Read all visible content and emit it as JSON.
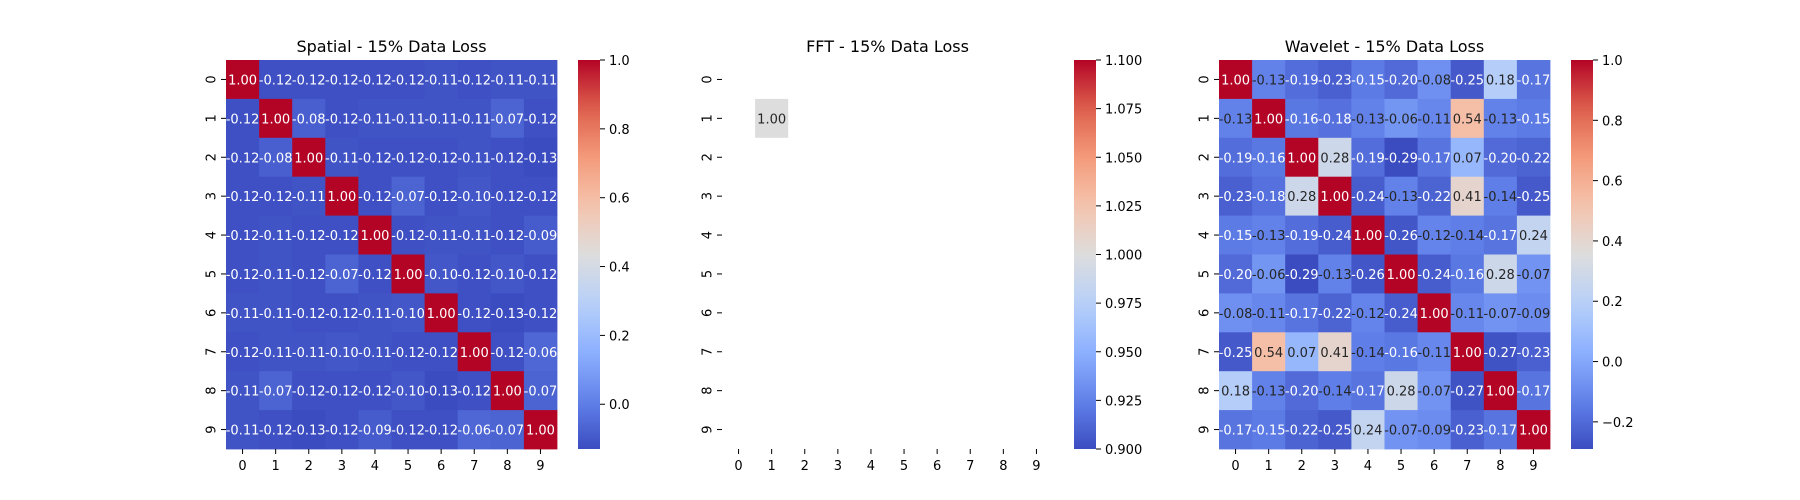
{
  "chart_data": [
    {
      "type": "heatmap",
      "title": "Spatial - 15% Data Loss",
      "x_ticks": [
        "0",
        "1",
        "2",
        "3",
        "4",
        "5",
        "6",
        "7",
        "8",
        "9"
      ],
      "y_ticks": [
        "0",
        "1",
        "2",
        "3",
        "4",
        "5",
        "6",
        "7",
        "8",
        "9"
      ],
      "matrix": [
        [
          1.0,
          -0.12,
          -0.12,
          -0.12,
          -0.12,
          -0.12,
          -0.11,
          -0.12,
          -0.11,
          -0.11
        ],
        [
          -0.12,
          1.0,
          -0.08,
          -0.12,
          -0.11,
          -0.11,
          -0.11,
          -0.11,
          -0.07,
          -0.12
        ],
        [
          -0.12,
          -0.08,
          1.0,
          -0.11,
          -0.12,
          -0.12,
          -0.12,
          -0.11,
          -0.12,
          -0.13
        ],
        [
          -0.12,
          -0.12,
          -0.11,
          1.0,
          -0.12,
          -0.07,
          -0.12,
          -0.1,
          -0.12,
          -0.12
        ],
        [
          -0.12,
          -0.11,
          -0.12,
          -0.12,
          1.0,
          -0.12,
          -0.11,
          -0.11,
          -0.12,
          -0.09
        ],
        [
          -0.12,
          -0.11,
          -0.12,
          -0.07,
          -0.12,
          1.0,
          -0.1,
          -0.12,
          -0.1,
          -0.12
        ],
        [
          -0.11,
          -0.11,
          -0.12,
          -0.12,
          -0.11,
          -0.1,
          1.0,
          -0.12,
          -0.13,
          -0.12
        ],
        [
          -0.12,
          -0.11,
          -0.11,
          -0.1,
          -0.11,
          -0.12,
          -0.12,
          1.0,
          -0.12,
          -0.06
        ],
        [
          -0.11,
          -0.07,
          -0.12,
          -0.12,
          -0.12,
          -0.1,
          -0.13,
          -0.12,
          1.0,
          -0.07
        ],
        [
          -0.11,
          -0.12,
          -0.13,
          -0.12,
          -0.09,
          -0.12,
          -0.12,
          -0.06,
          -0.07,
          1.0
        ]
      ],
      "colorbar": {
        "min": -0.13,
        "max": 1.0,
        "ticks": [
          "0.0",
          "0.2",
          "0.4",
          "0.6",
          "0.8",
          "1.0"
        ],
        "tick_values": [
          0.0,
          0.2,
          0.4,
          0.6,
          0.8,
          1.0
        ]
      },
      "colormap": "coolwarm"
    },
    {
      "type": "heatmap",
      "title": "FFT - 15% Data Loss",
      "x_ticks": [
        "0",
        "1",
        "2",
        "3",
        "4",
        "5",
        "6",
        "7",
        "8",
        "9"
      ],
      "y_ticks": [
        "0",
        "1",
        "2",
        "3",
        "4",
        "5",
        "6",
        "7",
        "8",
        "9"
      ],
      "cells": [
        {
          "row": 1,
          "col": 1,
          "value": 1.0,
          "label": "1.00"
        }
      ],
      "colorbar": {
        "min": 0.9,
        "max": 1.1,
        "ticks": [
          "0.900",
          "0.925",
          "0.950",
          "0.975",
          "1.000",
          "1.025",
          "1.050",
          "1.075",
          "1.100"
        ],
        "tick_values": [
          0.9,
          0.925,
          0.95,
          0.975,
          1.0,
          1.025,
          1.05,
          1.075,
          1.1
        ]
      },
      "colormap": "coolwarm"
    },
    {
      "type": "heatmap",
      "title": "Wavelet - 15% Data Loss",
      "x_ticks": [
        "0",
        "1",
        "2",
        "3",
        "4",
        "5",
        "6",
        "7",
        "8",
        "9"
      ],
      "y_ticks": [
        "0",
        "1",
        "2",
        "3",
        "4",
        "5",
        "6",
        "7",
        "8",
        "9"
      ],
      "matrix": [
        [
          1.0,
          -0.13,
          -0.19,
          -0.23,
          -0.15,
          -0.2,
          -0.08,
          -0.25,
          0.18,
          -0.17
        ],
        [
          -0.13,
          1.0,
          -0.16,
          -0.18,
          -0.13,
          -0.06,
          -0.11,
          0.54,
          -0.13,
          -0.15
        ],
        [
          -0.19,
          -0.16,
          1.0,
          0.28,
          -0.19,
          -0.29,
          -0.17,
          0.07,
          -0.2,
          -0.22
        ],
        [
          -0.23,
          -0.18,
          0.28,
          1.0,
          -0.24,
          -0.13,
          -0.22,
          0.41,
          -0.14,
          -0.25
        ],
        [
          -0.15,
          -0.13,
          -0.19,
          -0.24,
          1.0,
          -0.26,
          -0.12,
          -0.14,
          -0.17,
          0.24
        ],
        [
          -0.2,
          -0.06,
          -0.29,
          -0.13,
          -0.26,
          1.0,
          -0.24,
          -0.16,
          0.28,
          -0.07
        ],
        [
          -0.08,
          -0.11,
          -0.17,
          -0.22,
          -0.12,
          -0.24,
          1.0,
          -0.11,
          -0.07,
          -0.09
        ],
        [
          -0.25,
          0.54,
          0.07,
          0.41,
          -0.14,
          -0.16,
          -0.11,
          1.0,
          -0.27,
          -0.23
        ],
        [
          0.18,
          -0.13,
          -0.2,
          -0.14,
          -0.17,
          0.28,
          -0.07,
          -0.27,
          1.0,
          -0.17
        ],
        [
          -0.17,
          -0.15,
          -0.22,
          -0.25,
          0.24,
          -0.07,
          -0.09,
          -0.23,
          -0.17,
          1.0
        ]
      ],
      "colorbar": {
        "min": -0.29,
        "max": 1.0,
        "ticks": [
          "−0.2",
          "0.0",
          "0.2",
          "0.4",
          "0.6",
          "0.8",
          "1.0"
        ],
        "tick_values": [
          -0.2,
          0.0,
          0.2,
          0.4,
          0.6,
          0.8,
          1.0
        ]
      },
      "colormap": "coolwarm"
    }
  ]
}
